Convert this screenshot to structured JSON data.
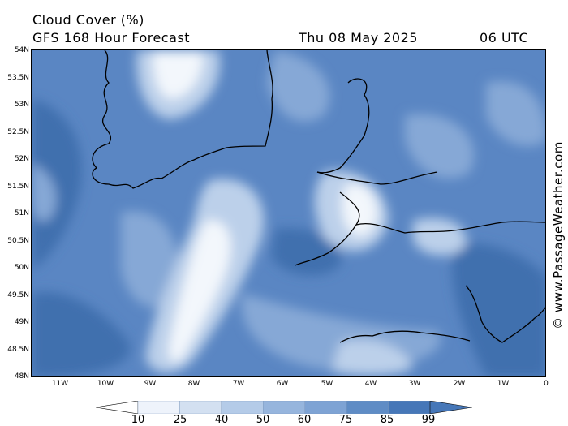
{
  "title": "Cloud Cover (%)",
  "subtitle": "GFS 168 Hour Forecast",
  "date": "Thu 08 May 2025",
  "time": "06 UTC",
  "credit": "© www.PassageWeather.com",
  "lat_labels": [
    "54N",
    "53.5N",
    "53N",
    "52.5N",
    "52N",
    "51.5N",
    "51N",
    "50.5N",
    "50N",
    "49.5N",
    "49N",
    "48.5N",
    "48N"
  ],
  "lon_labels": [
    "11W",
    "10W",
    "9W",
    "8W",
    "7W",
    "6W",
    "5W",
    "4W",
    "3W",
    "2W",
    "1W",
    "0"
  ],
  "colorbar": {
    "labels": [
      "10",
      "25",
      "40",
      "50",
      "60",
      "75",
      "85",
      "99"
    ],
    "colors": [
      "#ffffff",
      "#eef3fb",
      "#d3e0f1",
      "#b4cbe8",
      "#96b5dd",
      "#7ea3d4",
      "#5f8cc5",
      "#4677b8"
    ]
  },
  "palette": {
    "very_dense": "#3f6fae",
    "dense": "#5a86c3",
    "mid": "#86a8d6",
    "light": "#bcd0ea",
    "clear": "#f3f7fc",
    "coastline": "#000000"
  }
}
